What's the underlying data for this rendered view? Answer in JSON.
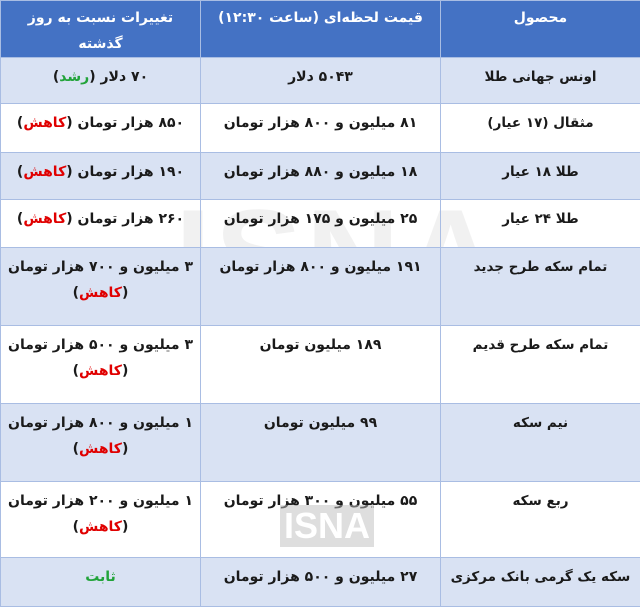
{
  "header": {
    "product": "محصول",
    "price": "قیمت لحظه‌ای (ساعت ۱۲:۳۰)",
    "change": "تغییرات نسبت به روز گذشته"
  },
  "rows": [
    {
      "product": "اونس جهانی طلا",
      "price": "۵۰۴۳ دلار",
      "change_amount": "۷۰ دلار",
      "change_status": "رشد",
      "status_type": "up"
    },
    {
      "product": "مثقال (۱۷ عیار)",
      "price": "۸۱ میلیون و ۸۰۰ هزار تومان",
      "change_amount": "۸۵۰ هزار تومان",
      "change_status": "کاهش",
      "status_type": "down"
    },
    {
      "product": "طلا ۱۸ عیار",
      "price": "۱۸ میلیون و ۸۸۰ هزار تومان",
      "change_amount": "۱۹۰ هزار تومان",
      "change_status": "کاهش",
      "status_type": "down"
    },
    {
      "product": "طلا ۲۴ عیار",
      "price": "۲۵ میلیون و ۱۷۵ هزار تومان",
      "change_amount": "۲۶۰ هزار تومان",
      "change_status": "کاهش",
      "status_type": "down"
    },
    {
      "product": "تمام سکه طرح جدید",
      "price": "۱۹۱ میلیون و ۸۰۰ هزار تومان",
      "change_amount": "۳ میلیون و ۷۰۰ هزار تومان",
      "change_status": "کاهش",
      "status_type": "down"
    },
    {
      "product": "تمام سکه طرح قدیم",
      "price": "۱۸۹ میلیون تومان",
      "change_amount": "۳ میلیون و ۵۰۰ هزار تومان",
      "change_status": "کاهش",
      "status_type": "down"
    },
    {
      "product": "نیم سکه",
      "price": "۹۹ میلیون تومان",
      "change_amount": "۱ میلیون و ۸۰۰ هزار تومان",
      "change_status": "کاهش",
      "status_type": "down"
    },
    {
      "product": "ربع سکه",
      "price": "۵۵ میلیون و ۳۰۰ هزار تومان",
      "change_amount": "۱ میلیون و ۲۰۰ هزار تومان",
      "change_status": "کاهش",
      "status_type": "down"
    },
    {
      "product": "سکه یک گرمی بانک مرکزی",
      "price": "۲۷ میلیون و ۵۰۰ هزار تومان",
      "change_amount": "",
      "change_status": "ثابت",
      "status_type": "up"
    }
  ],
  "watermark": "ISNA",
  "colors": {
    "header": "#4472c4",
    "alt_row": "#d9e2f3",
    "up": "#22a33a",
    "down": "#e00000"
  }
}
